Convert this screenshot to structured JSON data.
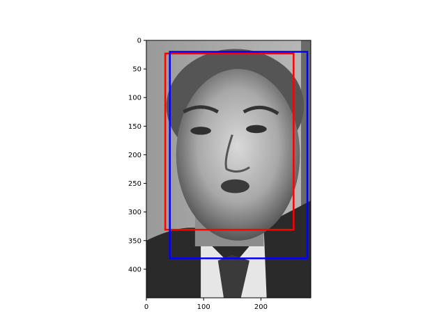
{
  "chart_data": {
    "type": "image",
    "title": "",
    "xlabel": "",
    "ylabel": "",
    "image": {
      "description": "grayscale face photograph",
      "width_units": 287,
      "height_units": 450
    },
    "xlim": [
      0,
      287
    ],
    "ylim": [
      450,
      0
    ],
    "x_ticks": [
      0,
      100,
      200
    ],
    "y_ticks": [
      0,
      50,
      100,
      150,
      200,
      250,
      300,
      350,
      400
    ],
    "boxes": [
      {
        "color": "#ff0000",
        "x0": 33,
        "y0": 23,
        "x1": 257,
        "y1": 331
      },
      {
        "color": "#0000ff",
        "x0": 41,
        "y0": 20,
        "x1": 281,
        "y1": 381
      }
    ],
    "grid": false,
    "legend": "none"
  }
}
